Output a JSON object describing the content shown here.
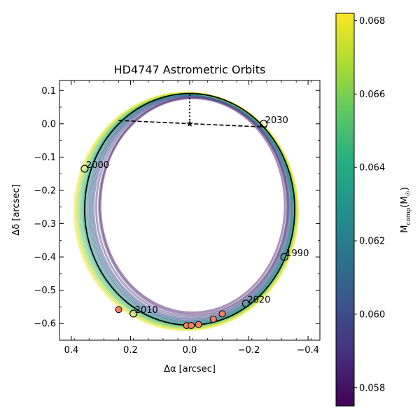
{
  "chart_data": {
    "type": "scatter",
    "title": "HD4747 Astrometric Orbits",
    "xlabel": "Δα [arcsec]",
    "ylabel": "Δδ [arcsec]",
    "xlim": [
      0.44,
      -0.44
    ],
    "ylim": [
      -0.65,
      0.13
    ],
    "x_ticks": [
      0.4,
      0.2,
      0.0,
      -0.2,
      -0.4
    ],
    "y_ticks": [
      0.1,
      0.0,
      -0.1,
      -0.2,
      -0.3,
      -0.4,
      -0.5,
      -0.6
    ],
    "x_tick_labels": [
      "0.4",
      "0.2",
      "0.0",
      "−0.2",
      "−0.4"
    ],
    "y_tick_labels": [
      "0.1",
      "0.0",
      "−0.1",
      "−0.2",
      "−0.3",
      "−0.4",
      "−0.5",
      "−0.6"
    ],
    "colorbar": {
      "label": "M_comp(M_☉)",
      "label_main": "M",
      "label_sub": "comp",
      "label_rest": "(M",
      "label_sub2": "☉",
      "label_end": ")",
      "range": [
        0.0575,
        0.0682
      ],
      "ticks": [
        0.058,
        0.06,
        0.062,
        0.064,
        0.066,
        0.068
      ],
      "tick_labels": [
        "0.058",
        "0.060",
        "0.062",
        "0.064",
        "0.066",
        "0.068"
      ],
      "colormap": "viridis"
    },
    "best_orbit": {
      "center": [
        0.0,
        -0.257
      ],
      "semi_x": 0.355,
      "semi_y": 0.348,
      "color": "#000000"
    },
    "star": {
      "x": 0.0,
      "y": 0.0
    },
    "line_of_nodes": [
      [
        0.24,
        0.01
      ],
      [
        -0.26,
        -0.01
      ]
    ],
    "periastron_line": [
      [
        0.0,
        0.0
      ],
      [
        0.0,
        0.092
      ]
    ],
    "predicted_epochs": [
      {
        "label": "1990",
        "x": -0.32,
        "y": -0.4
      },
      {
        "label": "2000",
        "x": 0.355,
        "y": -0.135
      },
      {
        "label": "2010",
        "x": 0.19,
        "y": -0.57
      },
      {
        "label": "2020",
        "x": -0.19,
        "y": -0.54
      },
      {
        "label": "2030",
        "x": -0.25,
        "y": 0.0
      }
    ],
    "measurements": [
      {
        "x": 0.24,
        "y": -0.558
      },
      {
        "x": 0.01,
        "y": -0.606
      },
      {
        "x": -0.005,
        "y": -0.606
      },
      {
        "x": -0.03,
        "y": -0.603
      },
      {
        "x": -0.08,
        "y": -0.587
      },
      {
        "x": -0.11,
        "y": -0.571
      }
    ],
    "measurement_color": "#f08060",
    "sample_orbits": [
      {
        "mass": 0.0578,
        "center": [
          -0.01,
          -0.245
        ],
        "semi_x": 0.312,
        "semi_y": 0.322
      },
      {
        "mass": 0.0585,
        "center": [
          -0.012,
          -0.247
        ],
        "semi_x": 0.318,
        "semi_y": 0.326
      },
      {
        "mass": 0.0592,
        "center": [
          -0.008,
          -0.249
        ],
        "semi_x": 0.324,
        "semi_y": 0.33
      },
      {
        "mass": 0.0598,
        "center": [
          -0.005,
          -0.251
        ],
        "semi_x": 0.33,
        "semi_y": 0.334
      },
      {
        "mass": 0.0603,
        "center": [
          -0.004,
          -0.252
        ],
        "semi_x": 0.335,
        "semi_y": 0.337
      },
      {
        "mass": 0.0608,
        "center": [
          -0.003,
          -0.253
        ],
        "semi_x": 0.34,
        "semi_y": 0.34
      },
      {
        "mass": 0.0614,
        "center": [
          -0.002,
          -0.254
        ],
        "semi_x": 0.344,
        "semi_y": 0.342
      },
      {
        "mass": 0.062,
        "center": [
          0.0,
          -0.255
        ],
        "semi_x": 0.348,
        "semi_y": 0.344
      },
      {
        "mass": 0.0628,
        "center": [
          0.002,
          -0.256
        ],
        "semi_x": 0.352,
        "semi_y": 0.346
      },
      {
        "mass": 0.0635,
        "center": [
          0.003,
          -0.257
        ],
        "semi_x": 0.355,
        "semi_y": 0.347
      },
      {
        "mass": 0.0642,
        "center": [
          0.004,
          -0.258
        ],
        "semi_x": 0.358,
        "semi_y": 0.348
      },
      {
        "mass": 0.065,
        "center": [
          0.006,
          -0.259
        ],
        "semi_x": 0.362,
        "semi_y": 0.35
      },
      {
        "mass": 0.0658,
        "center": [
          0.007,
          -0.26
        ],
        "semi_x": 0.366,
        "semi_y": 0.351
      },
      {
        "mass": 0.0666,
        "center": [
          0.009,
          -0.261
        ],
        "semi_x": 0.37,
        "semi_y": 0.353
      },
      {
        "mass": 0.0674,
        "center": [
          0.01,
          -0.262
        ],
        "semi_x": 0.374,
        "semi_y": 0.355
      },
      {
        "mass": 0.068,
        "center": [
          0.012,
          -0.263
        ],
        "semi_x": 0.378,
        "semi_y": 0.357
      }
    ]
  }
}
